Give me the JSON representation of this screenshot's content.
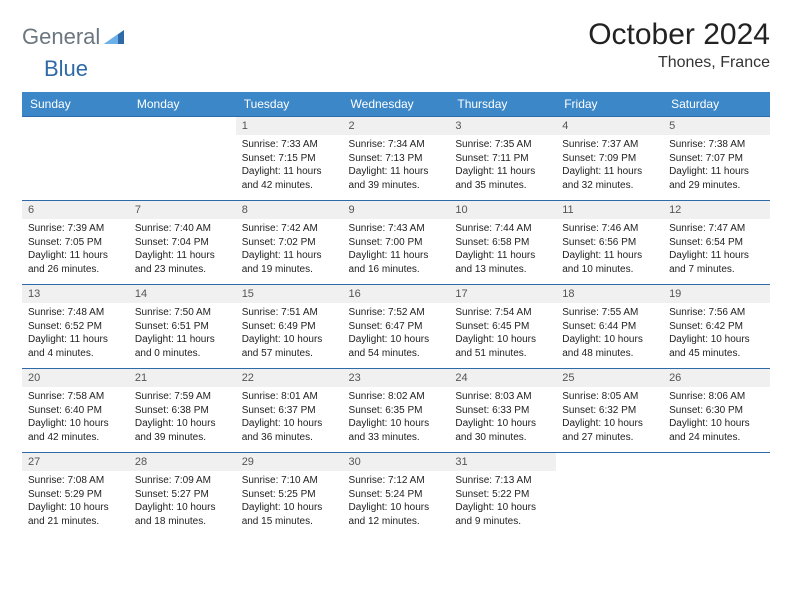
{
  "logo": {
    "part1": "General",
    "part2": "Blue"
  },
  "title": "October 2024",
  "location": "Thones, France",
  "colors": {
    "header_bg": "#3b87c8",
    "rule": "#2f6aa8",
    "daynum_bg": "#f0f0f0",
    "logo_gray": "#6b7680",
    "logo_blue": "#2f6aa8"
  },
  "dow": [
    "Sunday",
    "Monday",
    "Tuesday",
    "Wednesday",
    "Thursday",
    "Friday",
    "Saturday"
  ],
  "weeks": [
    [
      null,
      null,
      {
        "n": "1",
        "sr": "Sunrise: 7:33 AM",
        "ss": "Sunset: 7:15 PM",
        "dl": "Daylight: 11 hours and 42 minutes."
      },
      {
        "n": "2",
        "sr": "Sunrise: 7:34 AM",
        "ss": "Sunset: 7:13 PM",
        "dl": "Daylight: 11 hours and 39 minutes."
      },
      {
        "n": "3",
        "sr": "Sunrise: 7:35 AM",
        "ss": "Sunset: 7:11 PM",
        "dl": "Daylight: 11 hours and 35 minutes."
      },
      {
        "n": "4",
        "sr": "Sunrise: 7:37 AM",
        "ss": "Sunset: 7:09 PM",
        "dl": "Daylight: 11 hours and 32 minutes."
      },
      {
        "n": "5",
        "sr": "Sunrise: 7:38 AM",
        "ss": "Sunset: 7:07 PM",
        "dl": "Daylight: 11 hours and 29 minutes."
      }
    ],
    [
      {
        "n": "6",
        "sr": "Sunrise: 7:39 AM",
        "ss": "Sunset: 7:05 PM",
        "dl": "Daylight: 11 hours and 26 minutes."
      },
      {
        "n": "7",
        "sr": "Sunrise: 7:40 AM",
        "ss": "Sunset: 7:04 PM",
        "dl": "Daylight: 11 hours and 23 minutes."
      },
      {
        "n": "8",
        "sr": "Sunrise: 7:42 AM",
        "ss": "Sunset: 7:02 PM",
        "dl": "Daylight: 11 hours and 19 minutes."
      },
      {
        "n": "9",
        "sr": "Sunrise: 7:43 AM",
        "ss": "Sunset: 7:00 PM",
        "dl": "Daylight: 11 hours and 16 minutes."
      },
      {
        "n": "10",
        "sr": "Sunrise: 7:44 AM",
        "ss": "Sunset: 6:58 PM",
        "dl": "Daylight: 11 hours and 13 minutes."
      },
      {
        "n": "11",
        "sr": "Sunrise: 7:46 AM",
        "ss": "Sunset: 6:56 PM",
        "dl": "Daylight: 11 hours and 10 minutes."
      },
      {
        "n": "12",
        "sr": "Sunrise: 7:47 AM",
        "ss": "Sunset: 6:54 PM",
        "dl": "Daylight: 11 hours and 7 minutes."
      }
    ],
    [
      {
        "n": "13",
        "sr": "Sunrise: 7:48 AM",
        "ss": "Sunset: 6:52 PM",
        "dl": "Daylight: 11 hours and 4 minutes."
      },
      {
        "n": "14",
        "sr": "Sunrise: 7:50 AM",
        "ss": "Sunset: 6:51 PM",
        "dl": "Daylight: 11 hours and 0 minutes."
      },
      {
        "n": "15",
        "sr": "Sunrise: 7:51 AM",
        "ss": "Sunset: 6:49 PM",
        "dl": "Daylight: 10 hours and 57 minutes."
      },
      {
        "n": "16",
        "sr": "Sunrise: 7:52 AM",
        "ss": "Sunset: 6:47 PM",
        "dl": "Daylight: 10 hours and 54 minutes."
      },
      {
        "n": "17",
        "sr": "Sunrise: 7:54 AM",
        "ss": "Sunset: 6:45 PM",
        "dl": "Daylight: 10 hours and 51 minutes."
      },
      {
        "n": "18",
        "sr": "Sunrise: 7:55 AM",
        "ss": "Sunset: 6:44 PM",
        "dl": "Daylight: 10 hours and 48 minutes."
      },
      {
        "n": "19",
        "sr": "Sunrise: 7:56 AM",
        "ss": "Sunset: 6:42 PM",
        "dl": "Daylight: 10 hours and 45 minutes."
      }
    ],
    [
      {
        "n": "20",
        "sr": "Sunrise: 7:58 AM",
        "ss": "Sunset: 6:40 PM",
        "dl": "Daylight: 10 hours and 42 minutes."
      },
      {
        "n": "21",
        "sr": "Sunrise: 7:59 AM",
        "ss": "Sunset: 6:38 PM",
        "dl": "Daylight: 10 hours and 39 minutes."
      },
      {
        "n": "22",
        "sr": "Sunrise: 8:01 AM",
        "ss": "Sunset: 6:37 PM",
        "dl": "Daylight: 10 hours and 36 minutes."
      },
      {
        "n": "23",
        "sr": "Sunrise: 8:02 AM",
        "ss": "Sunset: 6:35 PM",
        "dl": "Daylight: 10 hours and 33 minutes."
      },
      {
        "n": "24",
        "sr": "Sunrise: 8:03 AM",
        "ss": "Sunset: 6:33 PM",
        "dl": "Daylight: 10 hours and 30 minutes."
      },
      {
        "n": "25",
        "sr": "Sunrise: 8:05 AM",
        "ss": "Sunset: 6:32 PM",
        "dl": "Daylight: 10 hours and 27 minutes."
      },
      {
        "n": "26",
        "sr": "Sunrise: 8:06 AM",
        "ss": "Sunset: 6:30 PM",
        "dl": "Daylight: 10 hours and 24 minutes."
      }
    ],
    [
      {
        "n": "27",
        "sr": "Sunrise: 7:08 AM",
        "ss": "Sunset: 5:29 PM",
        "dl": "Daylight: 10 hours and 21 minutes."
      },
      {
        "n": "28",
        "sr": "Sunrise: 7:09 AM",
        "ss": "Sunset: 5:27 PM",
        "dl": "Daylight: 10 hours and 18 minutes."
      },
      {
        "n": "29",
        "sr": "Sunrise: 7:10 AM",
        "ss": "Sunset: 5:25 PM",
        "dl": "Daylight: 10 hours and 15 minutes."
      },
      {
        "n": "30",
        "sr": "Sunrise: 7:12 AM",
        "ss": "Sunset: 5:24 PM",
        "dl": "Daylight: 10 hours and 12 minutes."
      },
      {
        "n": "31",
        "sr": "Sunrise: 7:13 AM",
        "ss": "Sunset: 5:22 PM",
        "dl": "Daylight: 10 hours and 9 minutes."
      },
      null,
      null
    ]
  ]
}
